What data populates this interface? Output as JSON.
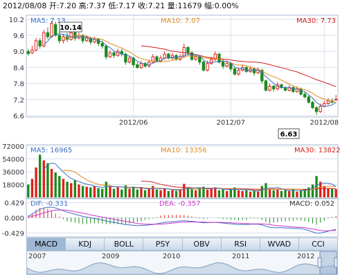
{
  "header": {
    "date": "2012/08/08",
    "open_label": "开:",
    "open": "7.20",
    "high_label": "高:",
    "high": "7.37",
    "low_label": "低:",
    "low": "7.17",
    "close_label": "收:",
    "close": "7.21",
    "volume_label": "量:",
    "volume": "11679",
    "change_label": "幅:",
    "change": "0.00%"
  },
  "colors": {
    "up": "#e0201c",
    "down": "#1c8a1c",
    "ma5": "#3a6fc4",
    "ma10": "#e08a1c",
    "ma30": "#d0201c",
    "dif": "#3a6fc4",
    "dea": "#cc33cc",
    "grid": "#d8dfe8",
    "frame": "#a9bdd3"
  },
  "price_panel": {
    "ma5_label": "MA5: 7.13",
    "ma10_label": "MA10: 7.07",
    "ma30_label": "MA30: 7.73",
    "max_marker": "10.14",
    "min_marker": "6.63"
  },
  "volume_panel": {
    "ma5_label": "MA5: 16965",
    "ma10_label": "MA10: 13356",
    "ma30_label": "MA30: 13822"
  },
  "macd_panel": {
    "dif_label": "DIF: -0.331",
    "dea_label": "DEA: -0.357",
    "macd_label": "MACD: 0.052"
  },
  "tabs": [
    {
      "label": "MACD",
      "active": true
    },
    {
      "label": "KDJ"
    },
    {
      "label": "BOLL"
    },
    {
      "label": "PSY"
    },
    {
      "label": "OBV"
    },
    {
      "label": "RSI"
    },
    {
      "label": "WVAD"
    },
    {
      "label": "CCI"
    }
  ],
  "overview_years": [
    "2007",
    "2009",
    "2010",
    "2011",
    "2012"
  ],
  "chart_data": [
    {
      "type": "candlestick",
      "title": "",
      "x_ticks": [
        "2012/06",
        "2012/07",
        "2012/08"
      ],
      "y_ticks": [
        "10.2",
        "9.6",
        "9.0",
        "8.4",
        "7.8",
        "7.2",
        "6.6"
      ],
      "ylim": [
        6.6,
        10.3
      ],
      "annotations": {
        "max": 10.14,
        "min": 6.63
      },
      "candles": [
        [
          9.0,
          8.92,
          9.1,
          8.85
        ],
        [
          8.95,
          9.05,
          9.2,
          8.9
        ],
        [
          9.05,
          9.4,
          9.5,
          9.0
        ],
        [
          9.4,
          9.2,
          9.5,
          9.1
        ],
        [
          9.2,
          9.7,
          9.8,
          9.15
        ],
        [
          9.7,
          9.55,
          9.9,
          9.45
        ],
        [
          9.55,
          10.05,
          10.14,
          9.5
        ],
        [
          10.0,
          9.6,
          10.1,
          9.55
        ],
        [
          9.6,
          9.4,
          9.75,
          9.3
        ],
        [
          9.4,
          9.55,
          9.65,
          9.3
        ],
        [
          9.55,
          9.45,
          9.7,
          9.35
        ],
        [
          9.45,
          9.7,
          9.8,
          9.4
        ],
        [
          9.7,
          9.5,
          9.8,
          9.4
        ],
        [
          9.5,
          9.6,
          9.7,
          9.45
        ],
        [
          9.6,
          9.4,
          9.65,
          9.3
        ],
        [
          9.4,
          9.5,
          9.6,
          9.35
        ],
        [
          9.5,
          9.35,
          9.55,
          9.25
        ],
        [
          9.35,
          9.45,
          9.55,
          9.3
        ],
        [
          9.45,
          9.3,
          9.5,
          9.2
        ],
        [
          9.3,
          9.2,
          9.4,
          9.1
        ],
        [
          9.2,
          8.8,
          9.25,
          8.7
        ],
        [
          8.8,
          8.95,
          9.05,
          8.75
        ],
        [
          8.95,
          8.85,
          9.0,
          8.75
        ],
        [
          8.85,
          9.0,
          9.1,
          8.8
        ],
        [
          9.0,
          8.9,
          9.1,
          8.8
        ],
        [
          8.9,
          8.6,
          8.95,
          8.5
        ],
        [
          8.6,
          8.75,
          8.85,
          8.55
        ],
        [
          8.75,
          8.5,
          8.8,
          8.4
        ],
        [
          8.5,
          8.4,
          8.6,
          8.35
        ],
        [
          8.4,
          8.55,
          8.65,
          8.35
        ],
        [
          8.55,
          8.45,
          8.6,
          8.4
        ],
        [
          8.45,
          8.6,
          8.7,
          8.4
        ],
        [
          8.6,
          8.8,
          8.9,
          8.55
        ],
        [
          8.8,
          8.65,
          8.85,
          8.6
        ],
        [
          8.65,
          8.75,
          8.85,
          8.6
        ],
        [
          8.75,
          8.9,
          9.0,
          8.7
        ],
        [
          8.9,
          8.75,
          8.95,
          8.7
        ],
        [
          8.75,
          8.85,
          8.95,
          8.7
        ],
        [
          8.85,
          8.7,
          8.9,
          8.65
        ],
        [
          8.7,
          8.8,
          8.9,
          8.65
        ],
        [
          8.8,
          9.15,
          9.3,
          8.75
        ],
        [
          9.15,
          8.95,
          9.2,
          8.85
        ],
        [
          8.95,
          8.7,
          9.0,
          8.65
        ],
        [
          8.7,
          8.8,
          8.9,
          8.65
        ],
        [
          8.8,
          8.6,
          8.85,
          8.5
        ],
        [
          8.6,
          8.3,
          8.65,
          8.25
        ],
        [
          8.3,
          8.55,
          8.65,
          8.25
        ],
        [
          8.55,
          8.7,
          8.8,
          8.5
        ],
        [
          8.7,
          8.9,
          9.0,
          8.65
        ],
        [
          8.9,
          8.6,
          8.95,
          8.55
        ],
        [
          8.6,
          8.45,
          8.7,
          8.35
        ],
        [
          8.45,
          8.55,
          8.65,
          8.4
        ],
        [
          8.55,
          8.35,
          8.6,
          8.25
        ],
        [
          8.35,
          8.15,
          8.4,
          8.1
        ],
        [
          8.15,
          8.3,
          8.4,
          8.1
        ],
        [
          8.3,
          8.4,
          8.5,
          8.25
        ],
        [
          8.4,
          8.25,
          8.45,
          8.2
        ],
        [
          8.25,
          8.35,
          8.45,
          8.2
        ],
        [
          8.35,
          8.2,
          8.4,
          8.1
        ],
        [
          8.2,
          8.3,
          8.4,
          8.15
        ],
        [
          8.3,
          7.9,
          8.35,
          7.8
        ],
        [
          7.9,
          7.55,
          7.95,
          7.5
        ],
        [
          7.55,
          7.7,
          7.8,
          7.5
        ],
        [
          7.7,
          7.6,
          7.75,
          7.5
        ],
        [
          7.6,
          7.75,
          7.85,
          7.55
        ],
        [
          7.75,
          7.65,
          7.8,
          7.6
        ],
        [
          7.65,
          7.55,
          7.7,
          7.5
        ],
        [
          7.55,
          7.65,
          7.75,
          7.5
        ],
        [
          7.65,
          7.5,
          7.7,
          7.45
        ],
        [
          7.5,
          7.6,
          7.7,
          7.45
        ],
        [
          7.6,
          7.4,
          7.65,
          7.35
        ],
        [
          7.4,
          7.3,
          7.5,
          7.25
        ],
        [
          7.3,
          7.1,
          7.35,
          7.05
        ],
        [
          7.1,
          6.9,
          7.15,
          6.85
        ],
        [
          6.9,
          6.75,
          6.95,
          6.63
        ],
        [
          6.75,
          6.95,
          7.05,
          6.7
        ],
        [
          6.95,
          7.05,
          7.15,
          6.9
        ],
        [
          7.05,
          7.15,
          7.25,
          7.0
        ],
        [
          7.15,
          7.1,
          7.25,
          7.05
        ],
        [
          7.2,
          7.21,
          7.37,
          7.17
        ]
      ]
    },
    {
      "type": "bar",
      "title": "",
      "y_ticks": [
        "72000",
        "54000",
        "36000",
        "18000"
      ],
      "ylim": [
        0,
        72000
      ],
      "values": [
        18000,
        26000,
        42000,
        60000,
        52000,
        48000,
        40000,
        35000,
        30000,
        26000,
        22000,
        20000,
        24000,
        18000,
        16000,
        15000,
        14000,
        16000,
        13000,
        12000,
        22000,
        15000,
        12000,
        14000,
        11000,
        17000,
        12000,
        15000,
        11000,
        13000,
        10000,
        12000,
        16000,
        11000,
        10000,
        13000,
        9000,
        10000,
        9000,
        11000,
        19000,
        14000,
        12000,
        10000,
        13000,
        15000,
        11000,
        12000,
        14000,
        10000,
        11000,
        9000,
        12000,
        14000,
        10000,
        9000,
        10000,
        8000,
        9000,
        8000,
        16000,
        20000,
        12000,
        10000,
        11000,
        9000,
        10000,
        9000,
        11000,
        8000,
        10000,
        12000,
        14000,
        18000,
        30000,
        22000,
        16000,
        13000,
        12000,
        11679
      ]
    },
    {
      "type": "macd",
      "title": "",
      "y_ticks": [
        "0.429",
        "0.000",
        "-0.429"
      ],
      "ylim": [
        -0.5,
        0.5
      ],
      "dif": [
        0.05,
        0.1,
        0.18,
        0.24,
        0.28,
        0.3,
        0.3,
        0.28,
        0.24,
        0.2,
        0.16,
        0.13,
        0.1,
        0.07,
        0.04,
        0.02,
        0.0,
        -0.02,
        -0.04,
        -0.06,
        -0.09,
        -0.11,
        -0.13,
        -0.15,
        -0.17,
        -0.19,
        -0.2,
        -0.21,
        -0.22,
        -0.22,
        -0.21,
        -0.2,
        -0.19,
        -0.17,
        -0.15,
        -0.13,
        -0.12,
        -0.11,
        -0.1,
        -0.09,
        -0.08,
        -0.09,
        -0.1,
        -0.11,
        -0.13,
        -0.14,
        -0.14,
        -0.13,
        -0.13,
        -0.14,
        -0.15,
        -0.16,
        -0.17,
        -0.18,
        -0.19,
        -0.19,
        -0.19,
        -0.18,
        -0.18,
        -0.18,
        -0.2,
        -0.24,
        -0.27,
        -0.28,
        -0.28,
        -0.28,
        -0.29,
        -0.29,
        -0.3,
        -0.3,
        -0.31,
        -0.33,
        -0.36,
        -0.4,
        -0.44,
        -0.43,
        -0.41,
        -0.38,
        -0.35,
        -0.331
      ],
      "dea": [
        0.02,
        0.04,
        0.07,
        0.1,
        0.14,
        0.17,
        0.2,
        0.22,
        0.22,
        0.22,
        0.21,
        0.19,
        0.17,
        0.15,
        0.13,
        0.11,
        0.08,
        0.06,
        0.04,
        0.02,
        0.0,
        -0.02,
        -0.04,
        -0.06,
        -0.08,
        -0.1,
        -0.12,
        -0.14,
        -0.16,
        -0.17,
        -0.18,
        -0.18,
        -0.18,
        -0.18,
        -0.18,
        -0.17,
        -0.16,
        -0.15,
        -0.14,
        -0.13,
        -0.12,
        -0.12,
        -0.12,
        -0.12,
        -0.12,
        -0.12,
        -0.13,
        -0.13,
        -0.13,
        -0.13,
        -0.13,
        -0.14,
        -0.14,
        -0.15,
        -0.15,
        -0.16,
        -0.16,
        -0.17,
        -0.17,
        -0.17,
        -0.17,
        -0.18,
        -0.19,
        -0.21,
        -0.22,
        -0.23,
        -0.24,
        -0.25,
        -0.26,
        -0.27,
        -0.27,
        -0.28,
        -0.3,
        -0.32,
        -0.34,
        -0.36,
        -0.37,
        -0.37,
        -0.36,
        -0.357
      ]
    }
  ]
}
